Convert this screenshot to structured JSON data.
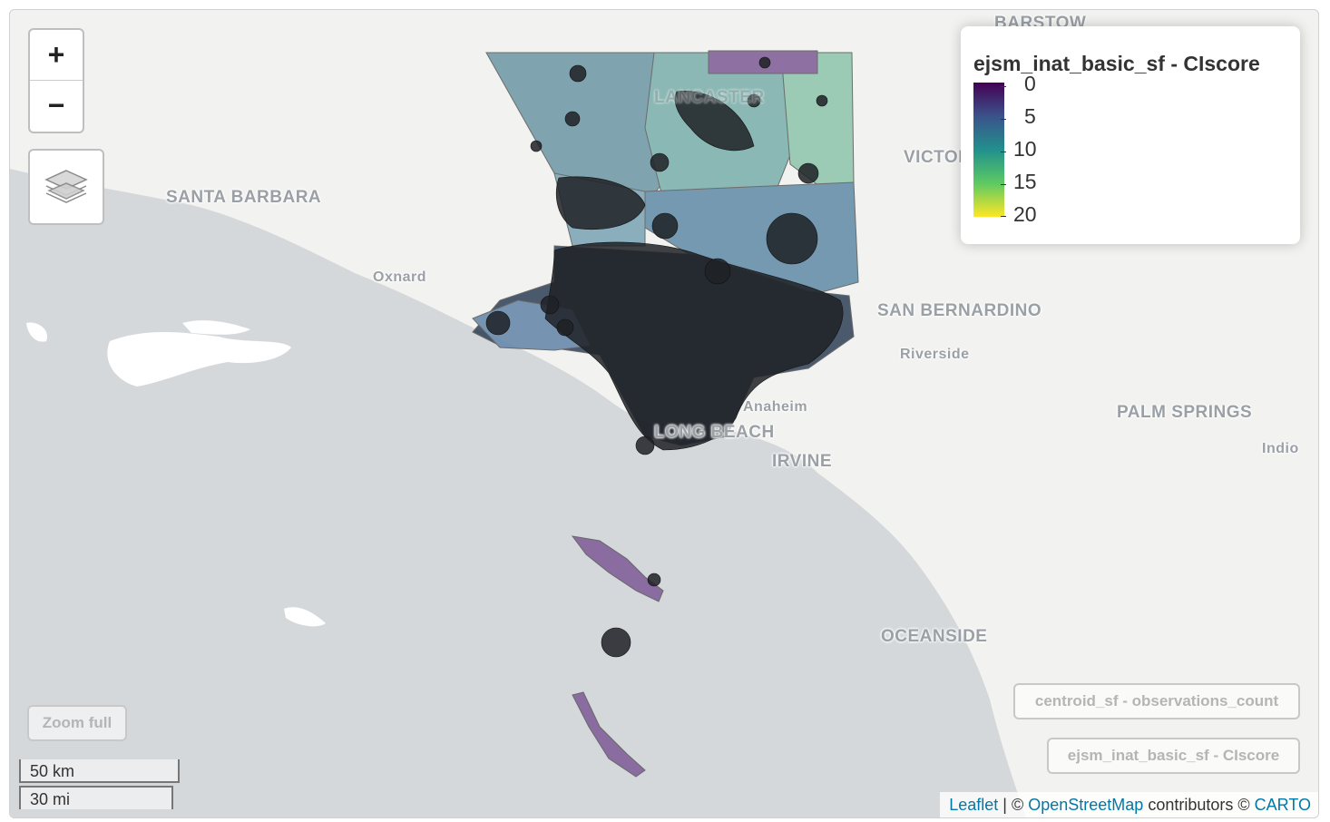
{
  "map": {
    "places": [
      {
        "id": "barstow",
        "label": "BARSTOW"
      },
      {
        "id": "santa-barbara",
        "label": "SANTA BARBARA"
      },
      {
        "id": "oxnard",
        "label": "Oxnard"
      },
      {
        "id": "lancaster",
        "label": "LANCASTER"
      },
      {
        "id": "victorville",
        "label": "VICTORVILLE"
      },
      {
        "id": "san-bernardino",
        "label": "SAN BERNARDINO"
      },
      {
        "id": "riverside",
        "label": "Riverside"
      },
      {
        "id": "anaheim",
        "label": "Anaheim"
      },
      {
        "id": "long-beach",
        "label": "LONG BEACH"
      },
      {
        "id": "irvine",
        "label": "IRVINE"
      },
      {
        "id": "palm-springs",
        "label": "PALM SPRINGS"
      },
      {
        "id": "indio",
        "label": "Indio"
      },
      {
        "id": "oceanside",
        "label": "OCEANSIDE"
      }
    ]
  },
  "controls": {
    "zoom_in": "+",
    "zoom_out": "−",
    "zoom_full": "Zoom full",
    "layer_button_1": "centroid_sf - observations_count",
    "layer_button_2": "ejsm_inat_basic_sf - CIscore"
  },
  "legend": {
    "title": "ejsm_inat_basic_sf - CIscore",
    "labels": [
      "0",
      "5",
      "10",
      "15",
      "20"
    ],
    "colors": {
      "low": "#440154",
      "mid": "#21908d",
      "high": "#fde725"
    }
  },
  "scale": {
    "metric": "50 km",
    "imperial": "30 mi"
  },
  "attribution": {
    "leaflet": "Leaflet",
    "sep1": " | © ",
    "osm": "OpenStreetMap",
    "contributors": " contributors © ",
    "carto": "CARTO"
  }
}
